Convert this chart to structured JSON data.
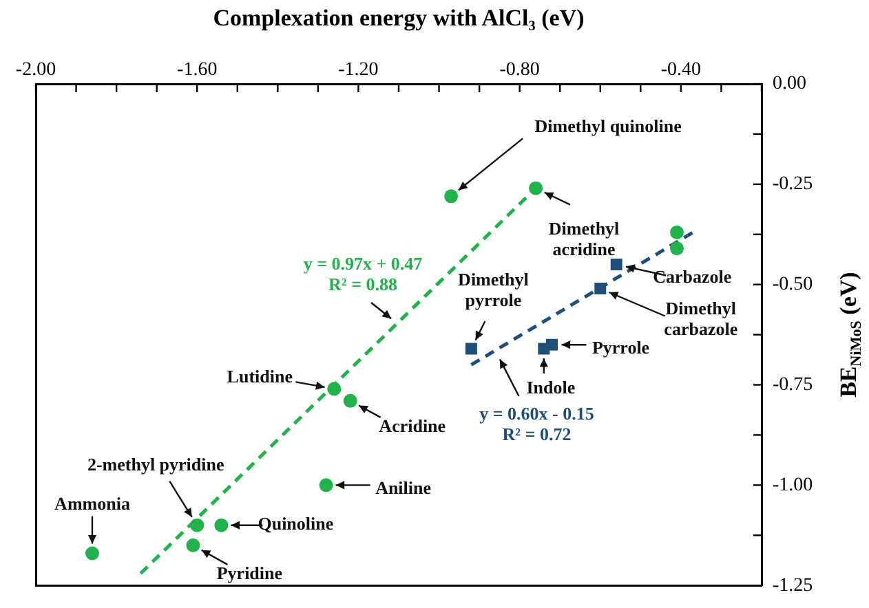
{
  "chart_data": {
    "type": "scatter",
    "xlabel": "Complexation energy with AlCl₃ (eV)",
    "ylabel": "BE$_{NiMoS}$ (eV)",
    "xlim": [
      -2.0,
      -0.2
    ],
    "ylim": [
      -1.25,
      0
    ],
    "xticks": [
      {
        "value": -2.0,
        "label": "-2.00"
      },
      {
        "value": -1.9,
        "label": null
      },
      {
        "value": -1.8,
        "label": null
      },
      {
        "value": -1.7,
        "label": null
      },
      {
        "value": -1.6,
        "label": "-1.60"
      },
      {
        "value": -1.5,
        "label": null
      },
      {
        "value": -1.4,
        "label": null
      },
      {
        "value": -1.3,
        "label": null
      },
      {
        "value": -1.2,
        "label": "-1.20"
      },
      {
        "value": -1.1,
        "label": null
      },
      {
        "value": -1.0,
        "label": null
      },
      {
        "value": -0.9,
        "label": null
      },
      {
        "value": -0.8,
        "label": "-0.80"
      },
      {
        "value": -0.7,
        "label": null
      },
      {
        "value": -0.6,
        "label": null
      },
      {
        "value": -0.5,
        "label": null
      },
      {
        "value": -0.4,
        "label": "-0.40"
      },
      {
        "value": -0.3,
        "label": null
      },
      {
        "value": -0.2,
        "label": null
      }
    ],
    "yticks": [
      {
        "value": 0,
        "label": "0.00"
      },
      {
        "value": -0.125,
        "label": null
      },
      {
        "value": -0.25,
        "label": "-0.25"
      },
      {
        "value": -0.375,
        "label": null
      },
      {
        "value": -0.5,
        "label": "-0.50"
      },
      {
        "value": -0.625,
        "label": null
      },
      {
        "value": -0.75,
        "label": "-0.75"
      },
      {
        "value": -0.875,
        "label": null
      },
      {
        "value": -1.0,
        "label": "-1.00"
      },
      {
        "value": -1.125,
        "label": null
      },
      {
        "value": -1.25,
        "label": "-1.25"
      }
    ],
    "legend": false,
    "series": [
      {
        "marker": "circle",
        "color": "#22b24c",
        "x": [
          -1.86,
          -1.6,
          -1.54,
          -1.61,
          -1.28,
          -1.26,
          -1.22,
          -0.97,
          -0.76,
          -0.41,
          -0.41
        ],
        "values": [
          -1.17,
          -1.1,
          -1.1,
          -1.15,
          -1.0,
          -0.76,
          -0.79,
          -0.28,
          -0.26,
          -0.37,
          -0.41
        ]
      },
      {
        "marker": "square",
        "color": "#1f4e79",
        "x": [
          -0.56,
          -0.6,
          -0.92,
          -0.74,
          -0.72
        ],
        "values": [
          -0.45,
          -0.51,
          -0.66,
          -0.66,
          -0.65
        ]
      },
      {
        "type": "line",
        "line_style": "dashed",
        "marker": "none",
        "color": "#22b24c",
        "x": [
          -1.74,
          -0.76
        ],
        "values": [
          -1.22,
          -0.26
        ]
      },
      {
        "type": "line",
        "line_style": "dashed",
        "marker": "none",
        "color": "#1f4e79",
        "x": [
          -0.92,
          -0.37
        ],
        "values": [
          -0.7,
          -0.37
        ]
      }
    ],
    "annotations": [
      {
        "text": "Ammonia",
        "x": -1.86,
        "y": -1.17
      },
      {
        "text": "2-methyl pyridine",
        "x": -1.6,
        "y": -1.1
      },
      {
        "text": "Quinoline",
        "x": -1.54,
        "y": -1.1
      },
      {
        "text": "Pyridine",
        "x": -1.61,
        "y": -1.15
      },
      {
        "text": "Aniline",
        "x": -1.28,
        "y": -1.0
      },
      {
        "text": "Lutidine",
        "x": -1.26,
        "y": -0.76
      },
      {
        "text": "Acridine",
        "x": -1.22,
        "y": -0.79
      },
      {
        "text": "Dimethyl quinoline",
        "x": -0.97,
        "y": -0.28
      },
      {
        "text": "Dimethyl\nacridine",
        "x": -0.76,
        "y": -0.26
      },
      {
        "text": "Carbazole",
        "x": -0.56,
        "y": -0.45
      },
      {
        "text": "Dimethyl\ncarbazole",
        "x": -0.6,
        "y": -0.51
      },
      {
        "text": "Dimethyl\npyrrole",
        "x": -0.92,
        "y": -0.66
      },
      {
        "text": "Pyrrole",
        "x": -0.72,
        "y": -0.65
      },
      {
        "text": "Indole",
        "x": -0.74,
        "y": -0.66
      },
      {
        "text": "y = 0.97x + 0.47\nR² = 0.88",
        "x": -1.1,
        "y": -0.6
      },
      {
        "text": "y = 0.60x - 0.15\nR² = 0.72",
        "x": -0.86,
        "y": -0.665
      }
    ]
  }
}
